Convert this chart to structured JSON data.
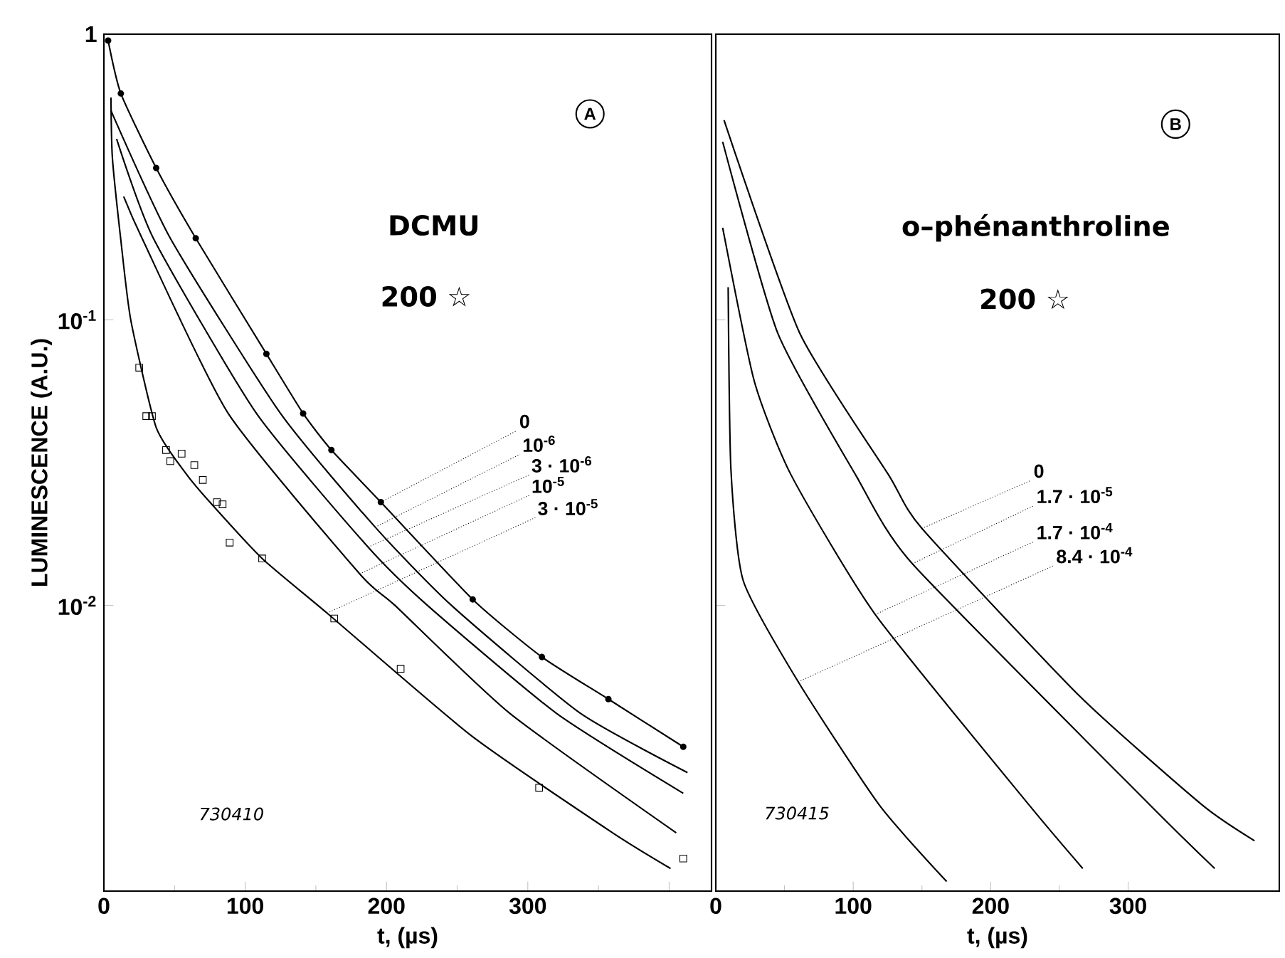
{
  "chart_data": [
    {
      "type": "line",
      "xlabel": "t, (µs)",
      "ylabel": "LUMINESCENCE (A.U.)",
      "log": "y",
      "xlim": [
        0,
        430
      ],
      "ylim": [
        0.001,
        1
      ],
      "xticks": [
        0,
        100,
        200,
        300,
        {
          "value": 400,
          "label": null
        }
      ],
      "yticks": [
        {
          "value": 1,
          "label": "1"
        },
        {
          "value": 0.1,
          "label": "10$^{-1}$"
        },
        {
          "value": 0.01,
          "label": "10$^{-2}$"
        },
        {
          "value": 0.001,
          "label": null
        }
      ],
      "annotations": [
        "A",
        "DCMU",
        "200 ☆",
        "730410",
        {
          "text": "0",
          "x": 196,
          "y": 0.023
        },
        {
          "text": "10$^{-6}$",
          "x": 192,
          "y": 0.0188
        },
        {
          "text": "3 · 10$^{-6}$",
          "x": 187,
          "y": 0.016
        },
        {
          "text": "10$^{-5}$",
          "x": 181,
          "y": 0.0129
        },
        {
          "text": "3 · 10$^{-5}$",
          "x": 158,
          "y": 0.0094
        }
      ],
      "series": [
        {
          "color": "#000000",
          "marker": "circle",
          "x": [
            3,
            12,
            37,
            65,
            115,
            141,
            161,
            196,
            261,
            310,
            357,
            410
          ],
          "values": [
            0.95,
            0.62,
            0.34,
            0.193,
            0.076,
            0.047,
            0.035,
            0.023,
            0.0105,
            0.0066,
            0.0047,
            0.0032
          ]
        },
        {
          "color": "#000000",
          "x": [
            5,
            47,
            125,
            192,
            246,
            337,
            413
          ],
          "values": [
            0.54,
            0.193,
            0.047,
            0.0188,
            0.01,
            0.0042,
            0.0026
          ]
        },
        {
          "color": "#000000",
          "x": [
            9,
            35,
            108,
            187,
            229,
            320,
            410
          ],
          "values": [
            0.43,
            0.193,
            0.047,
            0.016,
            0.01,
            0.0042,
            0.0022
          ]
        },
        {
          "color": "#000000",
          "x": [
            14,
            27,
            88,
            181,
            206,
            287,
            405
          ],
          "values": [
            0.27,
            0.193,
            0.047,
            0.0129,
            0.01,
            0.0042,
            0.0016
          ]
        },
        {
          "color": "#000000",
          "x": [
            5,
            6,
            12,
            19,
            37,
            58,
            75,
            112,
            158,
            260,
            360,
            401
          ],
          "values": [
            0.6,
            0.37,
            0.19,
            0.1,
            0.042,
            0.029,
            0.023,
            0.0146,
            0.0094,
            0.0035,
            0.0016,
            0.0012
          ]
        },
        {
          "type": "scatter",
          "color": "#000000",
          "marker": "square",
          "x": [
            25,
            30,
            34,
            44,
            47,
            55,
            64,
            70,
            80,
            84,
            89,
            112,
            163,
            210,
            308,
            410
          ],
          "values": [
            0.068,
            0.046,
            0.046,
            0.035,
            0.032,
            0.034,
            0.031,
            0.0275,
            0.023,
            0.0226,
            0.0166,
            0.0146,
            0.009,
            0.006,
            0.0023,
            0.0013
          ]
        }
      ]
    },
    {
      "type": "line",
      "xlabel": "t, (µs)",
      "log": "y",
      "xlim": [
        0,
        410
      ],
      "ylim": [
        0.001,
        1
      ],
      "tick_labels": "x",
      "xticks": [
        0,
        100,
        200,
        300
      ],
      "yticks": [
        1,
        0.1,
        0.01,
        0.001
      ],
      "annotations": [
        "B",
        "o–phénanthroline",
        "200 ☆",
        "730415",
        {
          "text": "0",
          "x": 150,
          "y": 0.0186
        },
        {
          "text": "1.7 · 10$^{-5}$",
          "x": 143,
          "y": 0.014
        },
        {
          "text": "1.7 · 10$^{-4}$",
          "x": 116,
          "y": 0.0093
        },
        {
          "text": "8.4 · 10$^{-4}$",
          "x": 60,
          "y": 0.0054
        }
      ],
      "series": [
        {
          "color": "#000000",
          "x": [
            6,
            61,
            126,
            150,
            265,
            354,
            392
          ],
          "values": [
            0.5,
            0.09,
            0.0285,
            0.0186,
            0.0048,
            0.002,
            0.0015
          ]
        },
        {
          "color": "#000000",
          "x": [
            5,
            45,
            102,
            143,
            316,
            363
          ],
          "values": [
            0.42,
            0.09,
            0.0285,
            0.014,
            0.002,
            0.0012
          ]
        },
        {
          "color": "#000000",
          "x": [
            5,
            28,
            55,
            116,
            228,
            267
          ],
          "values": [
            0.21,
            0.061,
            0.0285,
            0.0093,
            0.002,
            0.0012
          ]
        },
        {
          "color": "#000000",
          "x": [
            9,
            11,
            20,
            60,
            119,
            168
          ],
          "values": [
            0.13,
            0.03,
            0.0122,
            0.0054,
            0.002,
            0.00108
          ]
        }
      ]
    }
  ]
}
